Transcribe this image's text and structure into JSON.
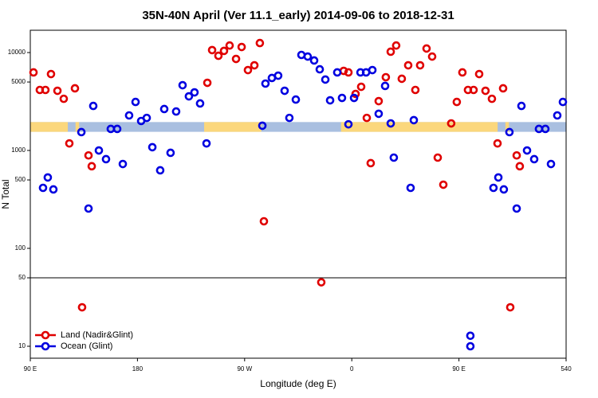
{
  "chart_data": {
    "type": "scatter",
    "title": "35N-40N April (Ver 11.1_early)   2014-09-06 to 2018-12-31",
    "x_label": "Longitude (deg E)",
    "y_label": "N Total",
    "log_y": true,
    "xlim": [
      90,
      540
    ],
    "xticks": [
      {
        "value": 90,
        "label": "90 E"
      },
      180,
      {
        "value": 270,
        "label": "90 W"
      },
      {
        "value": 360,
        "label": "0"
      },
      {
        "value": 450,
        "label": "90 E"
      },
      540
    ],
    "ylim": [
      7.55,
      16900
    ],
    "yticks": [
      10,
      50,
      100,
      500,
      1000,
      5000,
      10000
    ],
    "hline": 50,
    "legend": "lower left",
    "surface_band": {
      "range": [
        1550,
        1950
      ],
      "ocean_color": "#a9bfe0",
      "land_color": "#fbd77c",
      "land_spans": [
        [
          90,
          121.5
        ],
        [
          128,
          131
        ],
        [
          236,
          284
        ],
        [
          351,
          482.5
        ],
        [
          489,
          492
        ]
      ]
    },
    "series": [
      {
        "name": "Land (Nadir&Glint)",
        "color": "#e00000",
        "x": [
          92.7,
          98.0,
          102.7,
          107.4,
          112.8,
          118.1,
          122.8,
          127.5,
          133.5,
          138.9,
          141.6,
          238.7,
          242.7,
          248.0,
          252.7,
          257.4,
          262.8,
          267.5,
          272.8,
          278.2,
          282.8,
          286.2,
          334.4,
          353.2,
          357.2,
          363.2,
          367.9,
          372.6,
          375.9,
          382.6,
          388.6,
          392.7,
          397.3,
          402.0,
          407.4,
          413.4,
          417.4,
          422.8,
          427.5,
          432.2,
          436.9,
          443.5,
          448.2,
          452.9,
          457.6,
          462.3,
          467.0,
          472.3,
          477.7,
          482.4,
          487.1,
          493.1,
          498.5,
          501.1
        ],
        "values": [
          6270,
          4150,
          4150,
          6030,
          4070,
          3370,
          1180,
          4310,
          25,
          890,
          690,
          4910,
          10600,
          9270,
          10400,
          11800,
          8610,
          11400,
          6620,
          7410,
          12500,
          189,
          45,
          6500,
          6270,
          3780,
          4470,
          2150,
          742,
          3190,
          5600,
          10200,
          11800,
          5400,
          7410,
          4150,
          7410,
          11000,
          9100,
          845,
          447,
          1890,
          3130,
          6270,
          4150,
          4150,
          6030,
          4070,
          3370,
          1180,
          4310,
          25,
          890,
          690
        ]
      },
      {
        "name": "Ocean (Glint)",
        "color": "#0000e0",
        "x": [
          100.7,
          104.7,
          109.4,
          132.9,
          138.9,
          142.9,
          147.6,
          153.6,
          157.6,
          163.0,
          167.7,
          173.0,
          178.4,
          183.1,
          187.8,
          192.5,
          199.1,
          202.5,
          207.8,
          212.5,
          217.9,
          223.2,
          227.9,
          232.6,
          238.0,
          284.9,
          287.5,
          292.9,
          298.2,
          303.6,
          307.6,
          313.0,
          317.7,
          323.0,
          328.4,
          333.1,
          337.8,
          341.8,
          347.8,
          351.8,
          357.2,
          361.9,
          367.3,
          372.0,
          377.3,
          382.6,
          388.0,
          392.7,
          395.3,
          409.4,
          412.1,
          459.6,
          459.6,
          479.0,
          483.1,
          487.7,
          492.4,
          498.5,
          502.5,
          507.2,
          513.2,
          517.2,
          522.6,
          527.3,
          532.6,
          537.3
        ],
        "values": [
          415,
          530,
          400,
          1540,
          255,
          2850,
          1000,
          815,
          1660,
          1660,
          727,
          2280,
          3130,
          2000,
          2150,
          1080,
          627,
          2650,
          946,
          2500,
          4640,
          3570,
          3920,
          3020,
          1180,
          1790,
          4820,
          5500,
          5810,
          4070,
          2150,
          3310,
          9460,
          9100,
          8300,
          6740,
          5300,
          3250,
          6270,
          3440,
          1850,
          3440,
          6270,
          6270,
          6620,
          2370,
          4560,
          1890,
          845,
          415,
          2040,
          12.8,
          10,
          415,
          530,
          400,
          1540,
          255,
          2850,
          1000,
          815,
          1660,
          1660,
          727,
          2280,
          3130
        ]
      }
    ]
  }
}
